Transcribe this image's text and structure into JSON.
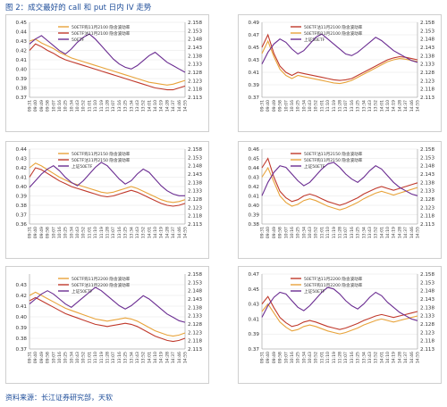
{
  "page": {
    "title": "图 2：成交最好的 call 和 put 日内 IV 走势",
    "source": "资料来源：长江证券研究部，天软"
  },
  "colors": {
    "call": "#e8a33a",
    "put": "#c0392b",
    "etf": "#6a2c91",
    "grid": "#e3e3e3",
    "title": "#1f4e9a"
  },
  "chart_data": [
    {
      "type": "line",
      "panel": "top-left",
      "x_ticks": [
        "09:31",
        "09:40",
        "09:49",
        "09:58",
        "10:07",
        "10:16",
        "10:25",
        "10:34",
        "10:43",
        "10:52",
        "11:01",
        "11:10",
        "11:19",
        "11:28",
        "13:07",
        "13:16",
        "13:25",
        "13:34",
        "13:43",
        "13:52",
        "14:01",
        "14:10",
        "14:19",
        "14:28",
        "14:37",
        "14:46",
        "14:55"
      ],
      "ylim_left": [
        0.37,
        0.45
      ],
      "yticks_left": [
        "0.45",
        "0.44",
        "0.43",
        "0.42",
        "0.41",
        "0.40",
        "0.39",
        "0.38",
        "0.37"
      ],
      "ylim_right": [
        2.113,
        2.158
      ],
      "yticks_right": [
        "2.158",
        "2.153",
        "2.148",
        "2.143",
        "2.138",
        "2.133",
        "2.128",
        "2.123",
        "2.118",
        "2.113"
      ],
      "legend": [
        "50ETF购11月2100 隐含波动率",
        "50ETF沽11月2100 隐含波动率",
        "50ETF"
      ],
      "series": [
        {
          "name": "50ETF购11月2100 隐含波动率",
          "axis": "left",
          "values": [
            0.43,
            0.432,
            0.428,
            0.425,
            0.422,
            0.418,
            0.415,
            0.412,
            0.41,
            0.408,
            0.406,
            0.404,
            0.402,
            0.4,
            0.398,
            0.396,
            0.394,
            0.392,
            0.39,
            0.388,
            0.386,
            0.385,
            0.384,
            0.383,
            0.384,
            0.386,
            0.388
          ]
        },
        {
          "name": "50ETF沽11月2100 隐含波动率",
          "axis": "left",
          "values": [
            0.42,
            0.427,
            0.424,
            0.42,
            0.417,
            0.413,
            0.41,
            0.408,
            0.406,
            0.404,
            0.402,
            0.4,
            0.398,
            0.396,
            0.394,
            0.392,
            0.39,
            0.388,
            0.386,
            0.384,
            0.382,
            0.38,
            0.379,
            0.378,
            0.378,
            0.38,
            0.382
          ]
        },
        {
          "name": "50ETF",
          "axis": "right",
          "values": [
            2.145,
            2.148,
            2.15,
            2.147,
            2.144,
            2.141,
            2.139,
            2.142,
            2.146,
            2.149,
            2.151,
            2.148,
            2.144,
            2.14,
            2.136,
            2.133,
            2.131,
            2.13,
            2.132,
            2.135,
            2.138,
            2.14,
            2.137,
            2.134,
            2.132,
            2.13,
            2.128
          ]
        }
      ]
    },
    {
      "type": "line",
      "panel": "top-right",
      "x_ticks": [
        "09:31",
        "09:40",
        "09:49",
        "09:58",
        "10:07",
        "10:16",
        "10:25",
        "10:34",
        "10:43",
        "10:52",
        "11:01",
        "11:10",
        "11:19",
        "11:28",
        "13:07",
        "13:16",
        "13:25",
        "13:34",
        "13:43",
        "13:52",
        "14:01",
        "14:10",
        "14:19",
        "14:28",
        "14:37",
        "14:46",
        "14:55"
      ],
      "ylim_left": [
        0.37,
        0.49
      ],
      "yticks_left": [
        "0.49",
        "0.47",
        "0.45",
        "0.43",
        "0.41",
        "0.39",
        "0.37"
      ],
      "ylim_right": [
        2.113,
        2.158
      ],
      "yticks_right": [
        "2.158",
        "2.153",
        "2.148",
        "2.143",
        "2.138",
        "2.133",
        "2.128",
        "2.123",
        "2.118",
        "2.113"
      ],
      "legend": [
        "50ETF沽11月2100 隐含波动率",
        "50ETF购11月2100 隐含波动率",
        "上证50ETF"
      ],
      "series": [
        {
          "name": "50ETF沽11月2100 隐含波动率",
          "axis": "left",
          "values": [
            0.45,
            0.47,
            0.44,
            0.42,
            0.41,
            0.405,
            0.41,
            0.408,
            0.406,
            0.404,
            0.402,
            0.4,
            0.398,
            0.397,
            0.398,
            0.4,
            0.405,
            0.41,
            0.415,
            0.42,
            0.425,
            0.43,
            0.433,
            0.435,
            0.434,
            0.432,
            0.43
          ]
        },
        {
          "name": "50ETF购11月2100 隐含波动率",
          "axis": "left",
          "values": [
            0.44,
            0.46,
            0.435,
            0.415,
            0.405,
            0.4,
            0.405,
            0.403,
            0.401,
            0.399,
            0.397,
            0.395,
            0.393,
            0.392,
            0.394,
            0.397,
            0.402,
            0.407,
            0.412,
            0.417,
            0.422,
            0.427,
            0.43,
            0.432,
            0.431,
            0.429,
            0.427
          ]
        },
        {
          "name": "上证50ETF",
          "axis": "right",
          "values": [
            2.133,
            2.14,
            2.145,
            2.148,
            2.146,
            2.142,
            2.139,
            2.141,
            2.145,
            2.149,
            2.151,
            2.148,
            2.145,
            2.142,
            2.139,
            2.138,
            2.14,
            2.143,
            2.146,
            2.149,
            2.147,
            2.144,
            2.141,
            2.139,
            2.137,
            2.135,
            2.134
          ]
        }
      ]
    },
    {
      "type": "line",
      "panel": "middle-left",
      "x_ticks": [
        "09:31",
        "09:40",
        "09:49",
        "09:58",
        "10:07",
        "10:16",
        "10:25",
        "10:34",
        "10:43",
        "10:52",
        "11:01",
        "11:10",
        "11:19",
        "11:28",
        "13:07",
        "13:16",
        "13:25",
        "13:34",
        "13:43",
        "13:52",
        "14:01",
        "14:10",
        "14:19",
        "14:28",
        "14:37",
        "14:46",
        "14:55"
      ],
      "ylim_left": [
        0.36,
        0.44
      ],
      "yticks_left": [
        "0.44",
        "0.43",
        "0.42",
        "0.41",
        "0.40",
        "0.39",
        "0.38",
        "0.37",
        "0.36"
      ],
      "ylim_right": [
        2.113,
        2.158
      ],
      "yticks_right": [
        "2.158",
        "2.153",
        "2.148",
        "2.143",
        "2.138",
        "2.133",
        "2.128",
        "2.123",
        "2.118",
        "2.113"
      ],
      "legend": [
        "50ETF购11月2150 隐含波动率",
        "50ETF沽11月2150 隐含波动率",
        "上证50ETF"
      ],
      "series": [
        {
          "name": "50ETF购11月2150 隐含波动率",
          "axis": "left",
          "values": [
            0.42,
            0.425,
            0.422,
            0.418,
            0.414,
            0.41,
            0.407,
            0.404,
            0.402,
            0.4,
            0.398,
            0.396,
            0.394,
            0.393,
            0.394,
            0.396,
            0.398,
            0.4,
            0.398,
            0.395,
            0.392,
            0.389,
            0.386,
            0.384,
            0.383,
            0.384,
            0.386
          ]
        },
        {
          "name": "50ETF沽11月2150 隐含波动率",
          "axis": "left",
          "values": [
            0.41,
            0.42,
            0.418,
            0.414,
            0.41,
            0.406,
            0.403,
            0.4,
            0.398,
            0.396,
            0.394,
            0.392,
            0.39,
            0.389,
            0.39,
            0.392,
            0.394,
            0.396,
            0.394,
            0.391,
            0.388,
            0.385,
            0.382,
            0.38,
            0.379,
            0.38,
            0.382
          ]
        },
        {
          "name": "上证50ETF",
          "axis": "right",
          "values": [
            2.135,
            2.139,
            2.143,
            2.146,
            2.148,
            2.145,
            2.141,
            2.138,
            2.136,
            2.139,
            2.143,
            2.147,
            2.15,
            2.148,
            2.144,
            2.14,
            2.137,
            2.139,
            2.143,
            2.146,
            2.144,
            2.14,
            2.136,
            2.133,
            2.131,
            2.13,
            2.13
          ]
        }
      ]
    },
    {
      "type": "line",
      "panel": "middle-right",
      "x_ticks": [
        "09:31",
        "09:40",
        "09:49",
        "09:58",
        "10:07",
        "10:16",
        "10:25",
        "10:34",
        "10:43",
        "10:52",
        "11:01",
        "11:10",
        "11:19",
        "11:28",
        "13:07",
        "13:16",
        "13:25",
        "13:34",
        "13:43",
        "13:52",
        "14:01",
        "14:10",
        "14:19",
        "14:28",
        "14:37",
        "14:46",
        "14:55"
      ],
      "ylim_left": [
        0.38,
        0.46
      ],
      "yticks_left": [
        "0.46",
        "0.45",
        "0.44",
        "0.43",
        "0.42",
        "0.41",
        "0.40",
        "0.39",
        "0.38"
      ],
      "ylim_right": [
        2.113,
        2.158
      ],
      "yticks_right": [
        "2.158",
        "2.153",
        "2.148",
        "2.143",
        "2.138",
        "2.133",
        "2.128",
        "2.123",
        "2.118",
        "2.113"
      ],
      "legend": [
        "50ETF沽11月2150 隐含波动率",
        "50ETF购11月2150 隐含波动率",
        "上证50ETF"
      ],
      "series": [
        {
          "name": "50ETF沽11月2150 隐含波动率",
          "axis": "left",
          "values": [
            0.44,
            0.45,
            0.43,
            0.415,
            0.408,
            0.404,
            0.406,
            0.41,
            0.412,
            0.41,
            0.407,
            0.404,
            0.402,
            0.4,
            0.402,
            0.405,
            0.408,
            0.412,
            0.415,
            0.418,
            0.42,
            0.418,
            0.416,
            0.418,
            0.42,
            0.422,
            0.424
          ]
        },
        {
          "name": "50ETF购11月2150 隐含波动率",
          "axis": "left",
          "values": [
            0.43,
            0.44,
            0.425,
            0.41,
            0.403,
            0.399,
            0.401,
            0.405,
            0.407,
            0.405,
            0.402,
            0.399,
            0.397,
            0.395,
            0.397,
            0.4,
            0.403,
            0.407,
            0.41,
            0.413,
            0.415,
            0.413,
            0.411,
            0.413,
            0.415,
            0.417,
            0.419
          ]
        },
        {
          "name": "上证50ETF",
          "axis": "right",
          "values": [
            2.13,
            2.138,
            2.144,
            2.148,
            2.147,
            2.143,
            2.139,
            2.136,
            2.138,
            2.142,
            2.146,
            2.149,
            2.15,
            2.147,
            2.143,
            2.14,
            2.138,
            2.141,
            2.145,
            2.148,
            2.146,
            2.142,
            2.138,
            2.135,
            2.133,
            2.131,
            2.13
          ]
        }
      ]
    },
    {
      "type": "line",
      "panel": "bottom-left",
      "x_ticks": [
        "09:31",
        "09:40",
        "09:49",
        "09:58",
        "10:07",
        "10:16",
        "10:25",
        "10:34",
        "10:43",
        "10:52",
        "11:01",
        "11:10",
        "11:19",
        "11:28",
        "13:07",
        "13:16",
        "13:25",
        "13:34",
        "13:43",
        "13:52",
        "14:01",
        "14:10",
        "14:19",
        "14:28",
        "14:37",
        "14:46",
        "14:55"
      ],
      "ylim_left": [
        0.37,
        0.44
      ],
      "yticks_left": [
        "0.43",
        "0.42",
        "0.41",
        "0.40",
        "0.39",
        "0.38",
        "0.37"
      ],
      "ylim_right": [
        2.113,
        2.158
      ],
      "yticks_right": [
        "2.158",
        "2.153",
        "2.148",
        "2.143",
        "2.138",
        "2.133",
        "2.128",
        "2.123",
        "2.118",
        "2.113"
      ],
      "legend": [
        "50ETF购11月2200 隐含波动率",
        "50ETF沽11月2200 隐含波动率",
        "上证50ETF"
      ],
      "series": [
        {
          "name": "50ETF购11月2200 隐含波动率",
          "axis": "left",
          "values": [
            0.42,
            0.423,
            0.42,
            0.417,
            0.414,
            0.411,
            0.408,
            0.406,
            0.404,
            0.402,
            0.4,
            0.398,
            0.397,
            0.396,
            0.397,
            0.398,
            0.399,
            0.398,
            0.396,
            0.393,
            0.39,
            0.387,
            0.385,
            0.383,
            0.382,
            0.383,
            0.385
          ]
        },
        {
          "name": "50ETF沽11月2200 隐含波动率",
          "axis": "left",
          "values": [
            0.415,
            0.418,
            0.415,
            0.412,
            0.409,
            0.406,
            0.403,
            0.401,
            0.399,
            0.397,
            0.395,
            0.393,
            0.392,
            0.391,
            0.392,
            0.393,
            0.394,
            0.393,
            0.391,
            0.388,
            0.385,
            0.382,
            0.38,
            0.378,
            0.377,
            0.378,
            0.38
          ]
        },
        {
          "name": "上证50ETF",
          "axis": "right",
          "values": [
            2.14,
            2.143,
            2.146,
            2.148,
            2.146,
            2.143,
            2.14,
            2.138,
            2.141,
            2.144,
            2.147,
            2.15,
            2.148,
            2.145,
            2.142,
            2.139,
            2.137,
            2.139,
            2.142,
            2.145,
            2.143,
            2.14,
            2.137,
            2.134,
            2.132,
            2.13,
            2.129
          ]
        }
      ]
    },
    {
      "type": "line",
      "panel": "bottom-right",
      "x_ticks": [
        "09:31",
        "09:40",
        "09:49",
        "09:58",
        "10:07",
        "10:16",
        "10:25",
        "10:34",
        "10:43",
        "10:52",
        "11:01",
        "11:10",
        "11:19",
        "11:28",
        "13:07",
        "13:16",
        "13:25",
        "13:34",
        "13:43",
        "13:52",
        "14:01",
        "14:10",
        "14:19",
        "14:28",
        "14:37",
        "14:46",
        "14:55"
      ],
      "ylim_left": [
        0.37,
        0.47
      ],
      "yticks_left": [
        "0.47",
        "0.45",
        "0.43",
        "0.41",
        "0.39",
        "0.37"
      ],
      "ylim_right": [
        2.113,
        2.158
      ],
      "yticks_right": [
        "2.158",
        "2.153",
        "2.148",
        "2.143",
        "2.138",
        "2.133",
        "2.128",
        "2.123",
        "2.118",
        "2.113"
      ],
      "legend": [
        "50ETF沽11月2200 隐含波动率",
        "50ETF购11月2200 隐含波动率",
        "上证50ETF"
      ],
      "series": [
        {
          "name": "50ETF沽11月2200 隐含波动率",
          "axis": "left",
          "values": [
            0.43,
            0.44,
            0.425,
            0.412,
            0.405,
            0.4,
            0.402,
            0.406,
            0.408,
            0.406,
            0.403,
            0.4,
            0.398,
            0.396,
            0.398,
            0.401,
            0.404,
            0.408,
            0.411,
            0.414,
            0.416,
            0.414,
            0.412,
            0.414,
            0.416,
            0.418,
            0.42
          ]
        },
        {
          "name": "50ETF购11月2200 隐含波动率",
          "axis": "left",
          "values": [
            0.42,
            0.43,
            0.418,
            0.406,
            0.399,
            0.394,
            0.396,
            0.4,
            0.402,
            0.4,
            0.397,
            0.394,
            0.392,
            0.39,
            0.392,
            0.395,
            0.398,
            0.402,
            0.405,
            0.408,
            0.41,
            0.408,
            0.406,
            0.408,
            0.41,
            0.412,
            0.414
          ]
        },
        {
          "name": "上证50ETF",
          "axis": "right",
          "values": [
            2.132,
            2.139,
            2.144,
            2.147,
            2.146,
            2.142,
            2.138,
            2.136,
            2.139,
            2.143,
            2.147,
            2.15,
            2.149,
            2.146,
            2.142,
            2.139,
            2.137,
            2.14,
            2.144,
            2.147,
            2.145,
            2.141,
            2.138,
            2.135,
            2.133,
            2.131,
            2.13
          ]
        }
      ]
    }
  ]
}
